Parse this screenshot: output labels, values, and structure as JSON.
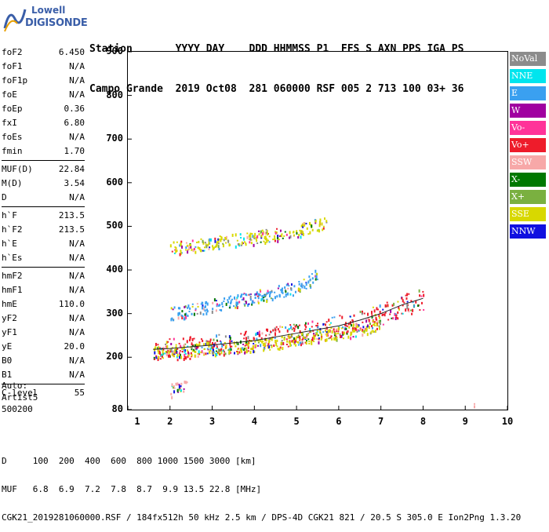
{
  "logo": {
    "top": "Lowell",
    "bottom": "DIGISONDE"
  },
  "header": {
    "line1": "Station       YYYY DAY    DDD HHMMSS P1  FFS S AXN PPS IGA PS",
    "line2": "Campo Grande  2019 Oct08  281 060000 RSF 005 2 713 100 03+ 36"
  },
  "params_groups": [
    [
      {
        "k": "foF2",
        "v": "6.450"
      },
      {
        "k": "foF1",
        "v": "N/A"
      },
      {
        "k": "foF1p",
        "v": "N/A"
      },
      {
        "k": "foE",
        "v": "N/A"
      },
      {
        "k": "foEp",
        "v": "0.36"
      },
      {
        "k": "fxI",
        "v": "6.80"
      },
      {
        "k": "foEs",
        "v": "N/A"
      },
      {
        "k": "fmin",
        "v": "1.70"
      }
    ],
    [
      {
        "k": "MUF(D)",
        "v": "22.84"
      },
      {
        "k": "M(D)",
        "v": "3.54"
      },
      {
        "k": "D",
        "v": "N/A"
      }
    ],
    [
      {
        "k": "h`F",
        "v": "213.5"
      },
      {
        "k": "h`F2",
        "v": "213.5"
      },
      {
        "k": "h`E",
        "v": "N/A"
      },
      {
        "k": "h`Es",
        "v": "N/A"
      }
    ],
    [
      {
        "k": "hmF2",
        "v": "N/A"
      },
      {
        "k": "hmF1",
        "v": "N/A"
      },
      {
        "k": "hmE",
        "v": "110.0"
      },
      {
        "k": "yF2",
        "v": "N/A"
      },
      {
        "k": "yF1",
        "v": "N/A"
      },
      {
        "k": "yE",
        "v": "20.0"
      },
      {
        "k": "B0",
        "v": "N/A"
      },
      {
        "k": "B1",
        "v": "N/A"
      }
    ],
    [
      {
        "k": "C-level",
        "v": "55"
      }
    ]
  ],
  "auto": {
    "l1": "Auto:",
    "l2": "Artist5",
    "l3": "500200"
  },
  "legend": [
    {
      "label": "NoVal",
      "color": "#8c8c8c"
    },
    {
      "label": "NNE",
      "color": "#00e5ee"
    },
    {
      "label": "E",
      "color": "#3aa0f0"
    },
    {
      "label": "W",
      "color": "#a000a0"
    },
    {
      "label": "Vo-",
      "color": "#ff3399"
    },
    {
      "label": "Vo+",
      "color": "#ee1c2b"
    },
    {
      "label": "SSW",
      "color": "#f7a8a8"
    },
    {
      "label": "X-",
      "color": "#007800"
    },
    {
      "label": "X+",
      "color": "#7ab040"
    },
    {
      "label": "SSE",
      "color": "#d8d800"
    },
    {
      "label": "NNW",
      "color": "#1010e0"
    }
  ],
  "footer": {
    "l1": "D     100  200  400  600  800 1000 1500 3000 [km]",
    "l2": "MUF   6.8  6.9  7.2  7.8  8.7  9.9 13.5 22.8 [MHz]",
    "l3": "CGK21_2019281060000.RSF / 184fx512h 50 kHz 2.5 km / DPS-4D CGK21 821 / 20.5 S 305.0 E Ion2Png 1.3.20"
  },
  "chart_data": {
    "type": "scatter",
    "title": "",
    "xlabel": "",
    "ylabel": "",
    "xlim": [
      1,
      10
    ],
    "ylim": [
      80,
      900
    ],
    "xticks": [
      "1",
      "2",
      "3",
      "4",
      "5",
      "6",
      "7",
      "8",
      "9",
      "10"
    ],
    "yticks": [
      "80",
      "200",
      "300",
      "400",
      "500",
      "600",
      "700",
      "800",
      "900"
    ],
    "series": [
      {
        "name": "Vo+",
        "trace": [
          [
            1.6,
            218
          ],
          [
            2.0,
            220
          ],
          [
            3.0,
            228
          ],
          [
            4.0,
            238
          ],
          [
            5.0,
            255
          ],
          [
            6.0,
            272
          ],
          [
            6.5,
            285
          ],
          [
            7.0,
            300
          ],
          [
            7.5,
            320
          ],
          [
            8.0,
            335
          ]
        ]
      },
      {
        "name": "SSE",
        "trace": [
          [
            1.6,
            212
          ],
          [
            2.5,
            218
          ],
          [
            3.5,
            225
          ],
          [
            4.5,
            235
          ],
          [
            5.5,
            250
          ],
          [
            6.5,
            265
          ],
          [
            7.0,
            280
          ]
        ]
      },
      {
        "name": "E",
        "trace": [
          [
            2.0,
            300
          ],
          [
            3.0,
            320
          ],
          [
            4.0,
            340
          ],
          [
            5.0,
            360
          ],
          [
            5.5,
            390
          ]
        ]
      },
      {
        "name": "SSE",
        "trace": [
          [
            2.0,
            450
          ],
          [
            3.0,
            462
          ],
          [
            4.0,
            475
          ],
          [
            5.0,
            490
          ],
          [
            5.7,
            510
          ]
        ]
      },
      {
        "name": "SSW",
        "trace": [
          [
            2.0,
            125
          ],
          [
            2.4,
            135
          ]
        ]
      },
      {
        "name": "SSW",
        "trace": [
          [
            9.2,
            85
          ],
          [
            9.2,
            95
          ]
        ]
      }
    ]
  }
}
